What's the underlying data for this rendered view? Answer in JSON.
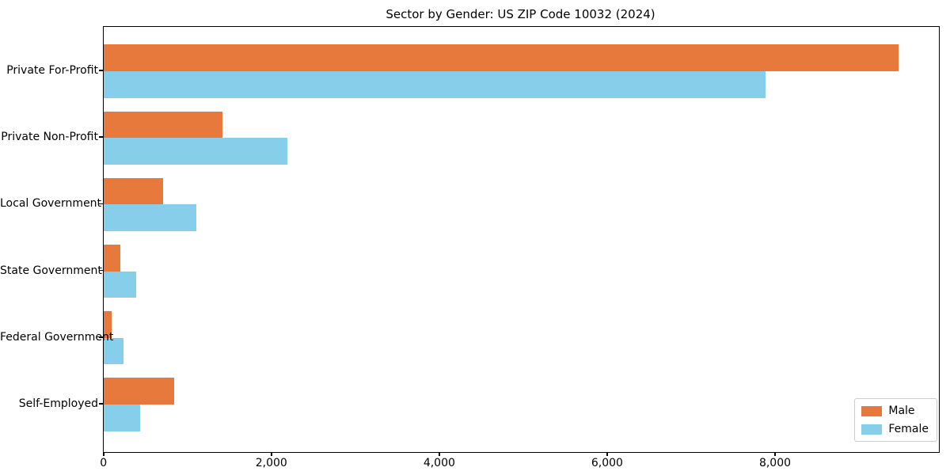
{
  "chart_data": {
    "type": "bar",
    "orientation": "horizontal",
    "title": "Sector by Gender: US ZIP Code 10032 (2024)",
    "categories": [
      "Private For-Profit",
      "Private Non-Profit",
      "Local Government",
      "State Government",
      "Federal Government",
      "Self-Employed"
    ],
    "series": [
      {
        "name": "Male",
        "color": "#e6793b",
        "values": [
          9470,
          1410,
          710,
          200,
          90,
          840
        ]
      },
      {
        "name": "Female",
        "color": "#87ceeb",
        "values": [
          7880,
          2190,
          1100,
          390,
          240,
          430
        ]
      }
    ],
    "xlim": [
      0,
      9950
    ],
    "xticks": {
      "values": [
        0,
        2000,
        4000,
        6000,
        8000
      ],
      "labels": [
        "0",
        "2,000",
        "4,000",
        "6,000",
        "8,000"
      ]
    },
    "xlabel": "",
    "ylabel": "",
    "grid": false,
    "legend": {
      "position": "lower right",
      "entries": [
        "Male",
        "Female"
      ]
    }
  }
}
